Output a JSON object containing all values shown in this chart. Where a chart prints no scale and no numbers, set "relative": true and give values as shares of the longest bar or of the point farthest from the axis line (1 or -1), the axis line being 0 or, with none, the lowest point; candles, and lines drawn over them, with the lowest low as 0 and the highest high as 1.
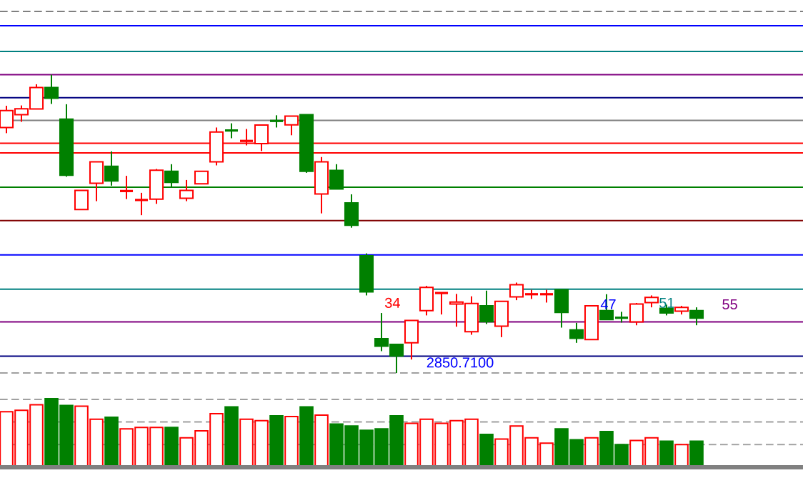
{
  "chart_data": [
    {
      "type": "candlestick",
      "relative": true,
      "categories": [
        null,
        null,
        null,
        null,
        null,
        null,
        null,
        null,
        null,
        null,
        null,
        null,
        null,
        null,
        null,
        null,
        null,
        null,
        null,
        null,
        null,
        null,
        null,
        null,
        null,
        null,
        null,
        null,
        null,
        null,
        null,
        null,
        null,
        null,
        null,
        null,
        null,
        null,
        null,
        null,
        null,
        null,
        null,
        null,
        null,
        null,
        null
      ],
      "ohlc": [
        [
          0.823,
          0.896,
          0.804,
          0.88
        ],
        [
          0.866,
          0.897,
          0.842,
          0.886
        ],
        [
          0.885,
          0.968,
          0.885,
          0.957
        ],
        [
          0.957,
          1,
          0.902,
          0.921
        ],
        [
          0.851,
          0.901,
          0.658,
          0.663
        ],
        [
          0.548,
          0.612,
          0.548,
          0.612
        ],
        [
          0.636,
          0.708,
          0.576,
          0.708
        ],
        [
          0.693,
          0.743,
          0.628,
          0.644
        ],
        [
          0.61,
          0.661,
          0.583,
          0.61
        ],
        [
          0.58,
          0.604,
          0.529,
          0.58
        ],
        [
          0.583,
          0.684,
          0.567,
          0.68
        ],
        [
          0.676,
          0.7,
          0.623,
          0.639
        ],
        [
          0.586,
          0.647,
          0.576,
          0.612
        ],
        [
          0.634,
          0.676,
          0.634,
          0.676
        ],
        [
          0.708,
          0.823,
          0.696,
          0.808
        ],
        [
          0.813,
          0.837,
          0.787,
          0.813
        ],
        [
          0.778,
          0.818,
          0.763,
          0.778
        ],
        [
          0.769,
          0.831,
          0.744,
          0.831
        ],
        [
          0.845,
          0.864,
          0.823,
          0.845
        ],
        [
          0.832,
          0.861,
          0.797,
          0.861
        ],
        [
          0.866,
          0.866,
          0.671,
          0.676
        ],
        [
          0.6,
          0.724,
          0.535,
          0.708
        ],
        [
          0.679,
          0.7,
          0.617,
          0.617
        ],
        [
          0.57,
          0.599,
          0.487,
          0.495
        ],
        [
          0.393,
          0.401,
          0.26,
          0.272
        ],
        [
          0.115,
          0.201,
          0.073,
          0.09
        ],
        [
          0.096,
          0.096,
          0,
          0.057
        ],
        [
          0.101,
          0.176,
          0.045,
          0.176
        ],
        [
          0.209,
          0.292,
          0.193,
          0.287
        ],
        [
          0.268,
          0.268,
          0.196,
          0.268
        ],
        [
          0.231,
          0.265,
          0.155,
          0.238
        ],
        [
          0.138,
          0.257,
          0.128,
          0.233
        ],
        [
          0.225,
          0.276,
          0.164,
          0.172
        ],
        [
          0.157,
          0.24,
          0.12,
          0.24
        ],
        [
          0.255,
          0.303,
          0.244,
          0.296
        ],
        [
          0.264,
          0.279,
          0.248,
          0.264
        ],
        [
          0.264,
          0.279,
          0.236,
          0.264
        ],
        [
          0.279,
          0.279,
          0.152,
          0.203
        ],
        [
          0.144,
          0.168,
          0.101,
          0.116
        ],
        [
          0.112,
          0.225,
          0.112,
          0.225
        ],
        [
          0.209,
          0.264,
          0.179,
          0.179
        ],
        [
          0.185,
          0.205,
          0.169,
          0.185
        ],
        [
          0.171,
          0.235,
          0.16,
          0.231
        ],
        [
          0.236,
          0.26,
          0.22,
          0.253
        ],
        [
          0.217,
          0.229,
          0.193,
          0.201
        ],
        [
          0.207,
          0.225,
          0.196,
          0.22
        ],
        [
          0.209,
          0.22,
          0.16,
          0.184
        ]
      ],
      "colors": [
        "#ff0000",
        "#ff0000",
        "#ff0000",
        "#008000",
        "#008000",
        "#ff0000",
        "#ff0000",
        "#008000",
        "#ff0000",
        "#ff0000",
        "#ff0000",
        "#008000",
        "#ff0000",
        "#ff0000",
        "#ff0000",
        "#008000",
        "#ff0000",
        "#ff0000",
        "#008000",
        "#ff0000",
        "#008000",
        "#ff0000",
        "#008000",
        "#008000",
        "#008000",
        "#008000",
        "#008000",
        "#ff0000",
        "#ff0000",
        "#ff0000",
        "#ff0000",
        "#ff0000",
        "#008000",
        "#ff0000",
        "#ff0000",
        "#ff0000",
        "#ff0000",
        "#008000",
        "#008000",
        "#ff0000",
        "#008000",
        "#008000",
        "#ff0000",
        "#ff0000",
        "#008000",
        "#ff0000",
        "#008000"
      ],
      "ref_lines": [
        {
          "axis": "y",
          "value": 1.212,
          "color": "#808080",
          "line_style": "dashed"
        },
        {
          "axis": "y",
          "value": 1.164,
          "color": "#0000ff"
        },
        {
          "axis": "y",
          "value": 1.078,
          "color": "#008080"
        },
        {
          "axis": "y",
          "value": 1.0,
          "color": "#800080"
        },
        {
          "axis": "y",
          "value": 0.923,
          "color": "#000080"
        },
        {
          "axis": "y",
          "value": 0.847,
          "color": "#808080"
        },
        {
          "axis": "y",
          "value": 0.77,
          "color": "#ff0000"
        },
        {
          "axis": "y",
          "value": 0.738,
          "color": "#ff0000"
        },
        {
          "axis": "y",
          "value": 0.623,
          "color": "#008000"
        },
        {
          "axis": "y",
          "value": 0.511,
          "color": "#800000"
        },
        {
          "axis": "y",
          "value": 0.396,
          "color": "#0000ff"
        },
        {
          "axis": "y",
          "value": 0.281,
          "color": "#008080"
        },
        {
          "axis": "y",
          "value": 0.171,
          "color": "#800080"
        },
        {
          "axis": "y",
          "value": 0.056,
          "color": "#000080"
        },
        {
          "axis": "y",
          "value": 0,
          "color": "#a0a0a0",
          "line_style": "dashed"
        }
      ],
      "annotations": [
        "34",
        "47",
        "51",
        "55",
        "2850.7100"
      ]
    },
    {
      "type": "bar",
      "relative": true,
      "categories": [
        null,
        null,
        null,
        null,
        null,
        null,
        null,
        null,
        null,
        null,
        null,
        null,
        null,
        null,
        null,
        null,
        null,
        null,
        null,
        null,
        null,
        null,
        null,
        null,
        null,
        null,
        null,
        null,
        null,
        null,
        null,
        null,
        null,
        null,
        null,
        null,
        null,
        null,
        null,
        null,
        null,
        null,
        null,
        null,
        null,
        null,
        null
      ],
      "values": [
        0.81,
        0.83,
        0.91,
        1,
        0.9,
        0.89,
        0.7,
        0.73,
        0.56,
        0.58,
        0.58,
        0.58,
        0.43,
        0.53,
        0.78,
        0.88,
        0.7,
        0.68,
        0.75,
        0.74,
        0.88,
        0.76,
        0.63,
        0.6,
        0.54,
        0.56,
        0.75,
        0.64,
        0.7,
        0.64,
        0.68,
        0.7,
        0.48,
        0.41,
        0.6,
        0.43,
        0.35,
        0.56,
        0.4,
        0.43,
        0.52,
        0.33,
        0.39,
        0.43,
        0.38,
        0.33,
        0.38
      ],
      "colors": [
        "#ff0000",
        "#ff0000",
        "#ff0000",
        "#008000",
        "#008000",
        "#ff0000",
        "#ff0000",
        "#008000",
        "#ff0000",
        "#ff0000",
        "#ff0000",
        "#008000",
        "#ff0000",
        "#ff0000",
        "#ff0000",
        "#008000",
        "#ff0000",
        "#ff0000",
        "#008000",
        "#ff0000",
        "#008000",
        "#ff0000",
        "#008000",
        "#008000",
        "#008000",
        "#008000",
        "#008000",
        "#ff0000",
        "#ff0000",
        "#ff0000",
        "#ff0000",
        "#ff0000",
        "#008000",
        "#ff0000",
        "#ff0000",
        "#ff0000",
        "#ff0000",
        "#008000",
        "#008000",
        "#ff0000",
        "#008000",
        "#008000",
        "#ff0000",
        "#ff0000",
        "#008000",
        "#ff0000",
        "#008000"
      ],
      "ref_lines": [
        {
          "axis": "y",
          "value": 0.99,
          "color": "#a0a0a0",
          "line_style": "dashed"
        },
        {
          "axis": "y",
          "value": 0.66,
          "color": "#a0a0a0",
          "line_style": "dashed"
        },
        {
          "axis": "y",
          "value": 0.33,
          "color": "#a0a0a0",
          "line_style": "dashed"
        }
      ]
    }
  ]
}
